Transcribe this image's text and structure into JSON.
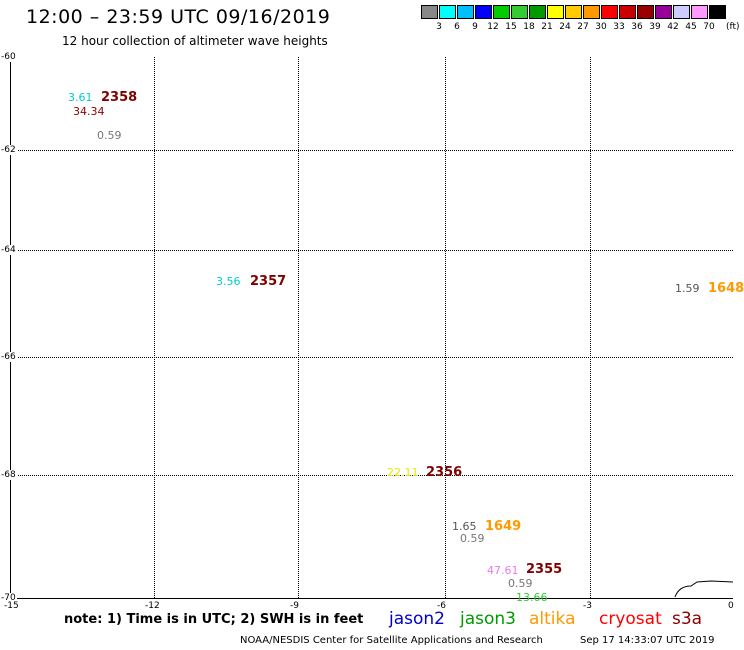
{
  "title": "12:00 – 23:59 UTC 09/16/2019",
  "subtitle": "12 hour collection of altimeter wave heights",
  "legend": {
    "colors": [
      "#888888",
      "#00ffff",
      "#00bfff",
      "#0000ff",
      "#00cc00",
      "#33cc33",
      "#009900",
      "#ffff00",
      "#ffcc00",
      "#ff9900",
      "#ff0000",
      "#cc0000",
      "#990000",
      "#990099",
      "#ccccff",
      "#ff99ff",
      "#000000"
    ],
    "labels": [
      "3",
      "6",
      "9",
      "12",
      "15",
      "18",
      "21",
      "24",
      "27",
      "30",
      "33",
      "36",
      "39",
      "42",
      "45",
      "70"
    ],
    "unit": "(ft)"
  },
  "axes": {
    "lat_labels": [
      "-60",
      "-62",
      "-64",
      "-66",
      "-68",
      "-70"
    ],
    "lon_labels": [
      "-15",
      "-12",
      "-9",
      "-6",
      "-3",
      "0"
    ]
  },
  "observations": [
    {
      "text": "3.61",
      "color": "#00cccc",
      "kind": "obs"
    },
    {
      "text": "2358",
      "color": "#800000",
      "kind": "pass"
    },
    {
      "text": "34.34",
      "color": "#8b0000",
      "kind": "obs"
    },
    {
      "text": "0.59",
      "color": "#777777",
      "kind": "obs"
    },
    {
      "text": "3.56",
      "color": "#00cccc",
      "kind": "obs"
    },
    {
      "text": "2357",
      "color": "#800000",
      "kind": "pass"
    },
    {
      "text": "1.59",
      "color": "#555555",
      "kind": "obs"
    },
    {
      "text": "1648",
      "color": "#ff9900",
      "kind": "pass"
    },
    {
      "text": "22.11",
      "color": "#e6e600",
      "kind": "obs"
    },
    {
      "text": "2356",
      "color": "#800000",
      "kind": "pass"
    },
    {
      "text": "1.65",
      "color": "#555555",
      "kind": "obs"
    },
    {
      "text": "1649",
      "color": "#ff9900",
      "kind": "pass"
    },
    {
      "text": "0.59",
      "color": "#777777",
      "kind": "obs"
    },
    {
      "text": "47.61",
      "color": "#ee77ee",
      "kind": "obs"
    },
    {
      "text": "2355",
      "color": "#800000",
      "kind": "pass"
    },
    {
      "text": "0.59",
      "color": "#777777",
      "kind": "obs"
    },
    {
      "text": "13.66",
      "color": "#33cc33",
      "kind": "obs"
    }
  ],
  "note": "note: 1) Time is in UTC; 2) SWH is in feet",
  "satellites": [
    {
      "name": "jason2",
      "color": "#0000cc"
    },
    {
      "name": "jason3",
      "color": "#009900"
    },
    {
      "name": "altika",
      "color": "#ff9900"
    },
    {
      "name": "cryosat",
      "color": "#ff0000"
    },
    {
      "name": "s3a",
      "color": "#880000"
    }
  ],
  "credit": "NOAA/NESDIS Center for Satellite Applications and Research",
  "timestamp": "Sep 17 14:33:07 UTC 2019"
}
